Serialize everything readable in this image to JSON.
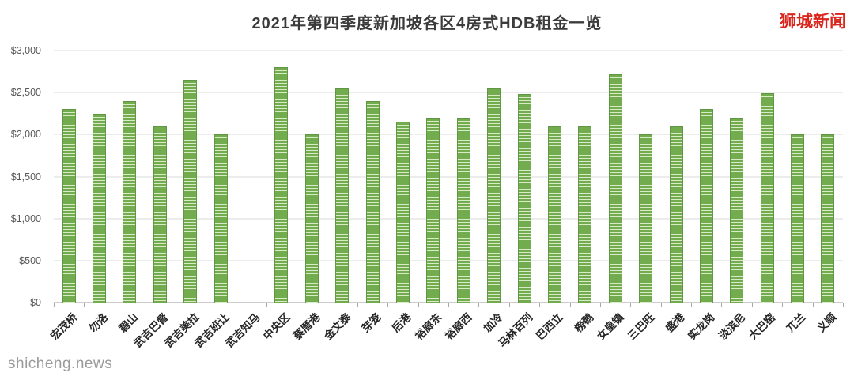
{
  "header": {
    "title": "2021年第四季度新加坡各区4房式HDB租金一览",
    "logo": "狮城新闻"
  },
  "footer": {
    "watermark": "shicheng.news"
  },
  "chart_data": {
    "type": "bar",
    "title": "2021年第四季度新加坡各区4房式HDB租金一览",
    "categories": [
      "宏茂桥",
      "勿洛",
      "碧山",
      "武吉巴督",
      "武吉美拉",
      "武吉班让",
      "武吉知马",
      "中央区",
      "蔡厝港",
      "金文泰",
      "芽笼",
      "后港",
      "裕廊东",
      "裕廊西",
      "加冷",
      "马林百列",
      "巴西立",
      "榜鹅",
      "女皇镇",
      "三巴旺",
      "盛港",
      "实龙岗",
      "淡滨尼",
      "大巴窑",
      "兀兰",
      "义顺"
    ],
    "values": [
      2300,
      2250,
      2400,
      2100,
      2650,
      2000,
      0,
      2800,
      2000,
      2550,
      2400,
      2150,
      2200,
      2200,
      2550,
      2480,
      2100,
      2100,
      2720,
      2000,
      2100,
      2300,
      2200,
      2490,
      2000,
      2000
    ],
    "xlabel": "",
    "ylabel": "",
    "ylim": [
      0,
      3000
    ],
    "ytick_step": 500,
    "ytick_labels": [
      "$0",
      "$500",
      "$1,000",
      "$1,500",
      "$2,000",
      "$2,500",
      "$3,000"
    ],
    "grid": true,
    "legend": "none",
    "bar_color": "#72ac4e",
    "bar_border_color": "#5f9743",
    "gridline_color": "#d9d9d9",
    "logo_color": "#da251c"
  }
}
